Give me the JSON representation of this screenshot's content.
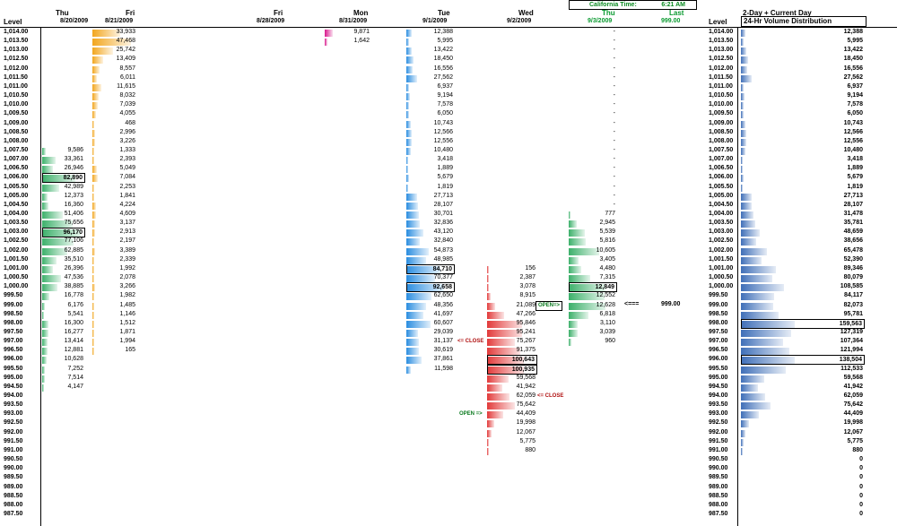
{
  "top_box": {
    "label": "California Time:",
    "time": "6:21 AM"
  },
  "columns": [
    {
      "day": "Thu",
      "date": "8/20/2009"
    },
    {
      "day": "Fri",
      "date": "8/21/2009"
    },
    {
      "day": "Fri",
      "date": "8/28/2009"
    },
    {
      "day": "Mon",
      "date": "8/31/2009"
    },
    {
      "day": "Tue",
      "date": "9/1/2009"
    },
    {
      "day": "Wed",
      "date": "9/2/2009"
    },
    {
      "day": "Thu",
      "date": "9/3/2009"
    }
  ],
  "last": {
    "label": "Last",
    "value": "999.00"
  },
  "level_header": "Level",
  "right_header": {
    "title": "2-Day + Current Day",
    "box": "24-Hr Volume Distribution",
    "level": "Level"
  },
  "levels": [
    "1,014.00",
    "1,013.50",
    "1,013.00",
    "1,012.50",
    "1,012.00",
    "1,011.50",
    "1,011.00",
    "1,010.50",
    "1,010.00",
    "1,009.50",
    "1,009.00",
    "1,008.50",
    "1,008.00",
    "1,007.50",
    "1,007.00",
    "1,006.50",
    "1,006.00",
    "1,005.50",
    "1,005.00",
    "1,004.50",
    "1,004.00",
    "1,003.50",
    "1,003.00",
    "1,002.50",
    "1,002.00",
    "1,001.50",
    "1,001.00",
    "1,000.50",
    "1,000.00",
    "999.50",
    "999.00",
    "998.50",
    "998.00",
    "997.50",
    "997.00",
    "996.50",
    "996.00",
    "995.50",
    "995.00",
    "994.50",
    "994.00",
    "993.50",
    "993.00",
    "992.50",
    "992.00",
    "991.50",
    "991.00",
    "990.50",
    "990.00",
    "989.50",
    "989.00",
    "988.50",
    "988.00",
    "987.50"
  ],
  "volumes": {
    "thu0820": [
      null,
      null,
      null,
      null,
      null,
      null,
      null,
      null,
      null,
      null,
      null,
      null,
      null,
      "9,586",
      "33,361",
      "26,946",
      "82,890",
      "42,989",
      "12,373",
      "16,360",
      "51,406",
      "75,656",
      "96,170",
      "77,106",
      "62,885",
      "35,510",
      "26,396",
      "47,536",
      "38,885",
      "16,778",
      "6,176",
      "5,541",
      "16,300",
      "16,277",
      "13,414",
      "12,881",
      "10,628",
      "7,252",
      "7,514",
      "4,147",
      null,
      null,
      null,
      null,
      null,
      null,
      null,
      null,
      null,
      null,
      null,
      null,
      null,
      null
    ],
    "fri0821": [
      "33,933",
      "47,468",
      "25,742",
      "13,409",
      "8,557",
      "6,011",
      "11,615",
      "8,032",
      "7,039",
      "4,055",
      "468",
      "2,996",
      "3,226",
      "1,333",
      "2,393",
      "5,049",
      "7,084",
      "2,253",
      "1,841",
      "4,224",
      "4,609",
      "3,137",
      "2,913",
      "2,197",
      "3,389",
      "2,339",
      "1,992",
      "2,078",
      "3,266",
      "1,982",
      "1,485",
      "1,146",
      "1,512",
      "1,871",
      "1,994",
      "165",
      null,
      null,
      null,
      null,
      null,
      null,
      null,
      null,
      null,
      null,
      null,
      null,
      null,
      null,
      null,
      null,
      null,
      null
    ],
    "mon0831": [
      "9,871",
      "1,642",
      null,
      null,
      null,
      null,
      null,
      null,
      null,
      null,
      null,
      null,
      null,
      null,
      null,
      null,
      null,
      null,
      null,
      null,
      null,
      null,
      null,
      null,
      null,
      null,
      null,
      null,
      null,
      null,
      null,
      null,
      null,
      null,
      null,
      null,
      null,
      null,
      null,
      null,
      null,
      null,
      null,
      null,
      null,
      null,
      null,
      null,
      null,
      null,
      null,
      null,
      null,
      null
    ],
    "tue0901": [
      "12,388",
      "5,995",
      "13,422",
      "18,450",
      "16,556",
      "27,562",
      "6,937",
      "9,194",
      "7,578",
      "6,050",
      "10,743",
      "12,566",
      "12,556",
      "10,480",
      "3,418",
      "1,889",
      "5,679",
      "1,819",
      "27,713",
      "28,107",
      "30,701",
      "32,836",
      "43,120",
      "32,840",
      "54,873",
      "48,985",
      "84,710",
      "70,377",
      "92,658",
      "62,650",
      "48,356",
      "41,697",
      "60,607",
      "29,039",
      "31,137",
      "30,619",
      "37,861",
      "11,598",
      null,
      null,
      null,
      null,
      null,
      null,
      null,
      null,
      null,
      null,
      null,
      null,
      null,
      null,
      null,
      null
    ],
    "wed0902": [
      null,
      null,
      null,
      null,
      null,
      null,
      null,
      null,
      null,
      null,
      null,
      null,
      null,
      null,
      null,
      null,
      null,
      null,
      null,
      null,
      null,
      null,
      null,
      null,
      null,
      null,
      "156",
      "2,387",
      "3,078",
      "8,915",
      "21,089",
      "47,266",
      "95,846",
      "95,241",
      "75,267",
      "91,375",
      "100,643",
      "100,935",
      "59,568",
      "41,942",
      "62,059",
      "75,642",
      "44,409",
      "19,998",
      "12,067",
      "5,775",
      "880",
      null,
      null,
      null,
      null,
      null,
      null,
      null
    ],
    "thu0903": [
      "-",
      "-",
      "-",
      "-",
      "-",
      "-",
      "-",
      "-",
      "-",
      "-",
      "-",
      "-",
      "-",
      "-",
      "-",
      "-",
      "-",
      "-",
      "-",
      "-",
      "777",
      "2,945",
      "5,539",
      "5,816",
      "10,605",
      "3,405",
      "4,480",
      "7,315",
      "12,849",
      "12,552",
      "12,628",
      "6,818",
      "3,110",
      "3,039",
      "960",
      null,
      null,
      null,
      null,
      null,
      null,
      null,
      null,
      null,
      null,
      null,
      null,
      null,
      null,
      null,
      null,
      null,
      null,
      null
    ],
    "dist": [
      "12,388",
      "5,995",
      "13,422",
      "18,450",
      "16,556",
      "27,562",
      "6,937",
      "9,194",
      "7,578",
      "6,050",
      "10,743",
      "12,566",
      "12,556",
      "10,480",
      "3,418",
      "1,889",
      "5,679",
      "1,819",
      "27,713",
      "28,107",
      "31,478",
      "35,781",
      "48,659",
      "38,656",
      "65,478",
      "52,390",
      "89,346",
      "80,079",
      "108,585",
      "84,117",
      "82,073",
      "95,781",
      "159,563",
      "127,319",
      "107,364",
      "121,994",
      "138,504",
      "112,533",
      "59,568",
      "41,942",
      "62,059",
      "75,642",
      "44,409",
      "19,998",
      "12,067",
      "5,775",
      "880",
      "0",
      "0",
      "0",
      "0",
      "0",
      "0",
      "0"
    ]
  },
  "boxed_values": {
    "thu0820": [
      "82,890",
      "96,170"
    ],
    "tue0901": [
      "84,710",
      "92,658"
    ],
    "wed0902": [
      "100,643",
      "100,935"
    ],
    "thu0903": [
      "12,849"
    ],
    "dist": [
      "159,563",
      "138,504"
    ]
  },
  "tags": {
    "open_thu": "OPEN=>",
    "arrow": "<===",
    "arrow_price": "999.00",
    "close_tue": "<= CLOSE",
    "close_wed": "<= CLOSE",
    "open_wed": "OPEN =>"
  },
  "colors": {
    "thu0820": "#3cb06a",
    "fri0821": "#f2a61e",
    "mon0831": "#d8188c",
    "tue0901": "#2a8de0",
    "wed0902": "#e23a3a",
    "thu0903": "#3cb06a",
    "dist": "#3f6fb8"
  }
}
